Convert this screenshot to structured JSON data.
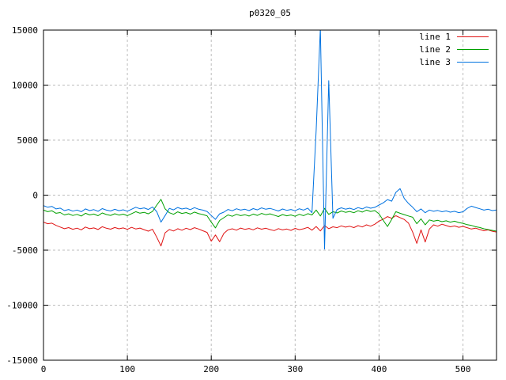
{
  "chart_data": {
    "type": "line",
    "title": "p0320_05",
    "xlabel": "",
    "ylabel": "",
    "xlim": [
      0,
      540
    ],
    "ylim": [
      -15000,
      15000
    ],
    "x_ticks": [
      0,
      100,
      200,
      300,
      400,
      500
    ],
    "y_ticks": [
      -15000,
      -10000,
      -5000,
      0,
      5000,
      10000,
      15000
    ],
    "grid": true,
    "legend_position": "top-right",
    "x_start": 0,
    "x_step": 5,
    "series": [
      {
        "name": "line 1",
        "color": "#e01414",
        "values": [
          -2450,
          -2600,
          -2550,
          -2750,
          -2900,
          -3050,
          -2950,
          -3100,
          -3000,
          -3150,
          -2900,
          -3050,
          -2980,
          -3120,
          -2870,
          -3010,
          -3090,
          -2940,
          -3060,
          -2980,
          -3110,
          -2930,
          -3070,
          -2990,
          -3140,
          -3270,
          -3100,
          -3830,
          -4620,
          -3420,
          -3120,
          -3260,
          -3050,
          -3190,
          -3010,
          -3130,
          -2960,
          -3080,
          -3240,
          -3390,
          -4180,
          -3620,
          -4230,
          -3480,
          -3150,
          -3060,
          -3180,
          -2990,
          -3110,
          -3030,
          -3150,
          -2970,
          -3090,
          -3010,
          -3130,
          -3220,
          -3040,
          -3160,
          -3080,
          -3200,
          -3020,
          -3140,
          -3060,
          -2930,
          -3180,
          -2850,
          -3250,
          -2760,
          -3050,
          -2880,
          -2960,
          -2790,
          -2910,
          -2830,
          -2950,
          -2770,
          -2890,
          -2700,
          -2820,
          -2640,
          -2360,
          -2180,
          -1950,
          -2100,
          -1870,
          -2040,
          -2210,
          -2530,
          -3350,
          -4380,
          -3150,
          -4260,
          -3080,
          -2700,
          -2820,
          -2640,
          -2760,
          -2880,
          -2800,
          -2920,
          -2840,
          -2960,
          -3080,
          -3000,
          -3120,
          -3240,
          -3160,
          -3280,
          -3350
        ]
      },
      {
        "name": "line 2",
        "color": "#00a000",
        "values": [
          -1350,
          -1500,
          -1420,
          -1650,
          -1580,
          -1800,
          -1700,
          -1850,
          -1750,
          -1900,
          -1650,
          -1800,
          -1720,
          -1870,
          -1620,
          -1760,
          -1840,
          -1690,
          -1810,
          -1730,
          -1860,
          -1680,
          -1500,
          -1640,
          -1560,
          -1700,
          -1480,
          -900,
          -380,
          -1250,
          -1600,
          -1740,
          -1520,
          -1660,
          -1580,
          -1720,
          -1540,
          -1680,
          -1760,
          -1880,
          -2450,
          -2980,
          -2300,
          -2050,
          -1800,
          -1920,
          -1740,
          -1860,
          -1780,
          -1900,
          -1720,
          -1840,
          -1660,
          -1780,
          -1700,
          -1820,
          -1940,
          -1760,
          -1880,
          -1800,
          -1920,
          -1740,
          -1860,
          -1680,
          -1800,
          -1350,
          -1900,
          -1200,
          -1750,
          -1500,
          -1620,
          -1440,
          -1560,
          -1480,
          -1600,
          -1420,
          -1540,
          -1360,
          -1480,
          -1400,
          -1700,
          -2300,
          -2850,
          -2200,
          -1500,
          -1650,
          -1770,
          -1890,
          -2010,
          -2600,
          -2150,
          -2700,
          -2250,
          -2370,
          -2290,
          -2410,
          -2330,
          -2450,
          -2370,
          -2490,
          -2560,
          -2680,
          -2750,
          -2870,
          -2940,
          -3060,
          -3130,
          -3200,
          -3270
        ]
      },
      {
        "name": "line 3",
        "color": "#0072e0",
        "values": [
          -950,
          -1100,
          -1020,
          -1250,
          -1180,
          -1400,
          -1300,
          -1450,
          -1350,
          -1500,
          -1250,
          -1400,
          -1320,
          -1470,
          -1220,
          -1360,
          -1440,
          -1290,
          -1410,
          -1330,
          -1460,
          -1280,
          -1100,
          -1240,
          -1160,
          -1300,
          -1080,
          -1500,
          -2450,
          -1850,
          -1200,
          -1340,
          -1120,
          -1260,
          -1180,
          -1320,
          -1140,
          -1280,
          -1360,
          -1480,
          -1850,
          -2200,
          -1700,
          -1550,
          -1300,
          -1420,
          -1240,
          -1360,
          -1280,
          -1400,
          -1220,
          -1340,
          -1160,
          -1280,
          -1200,
          -1320,
          -1440,
          -1260,
          -1380,
          -1300,
          -1420,
          -1240,
          -1360,
          -1180,
          -1600,
          5900,
          15200,
          -4900,
          10400,
          -2100,
          -1300,
          -1150,
          -1270,
          -1190,
          -1310,
          -1130,
          -1250,
          -1070,
          -1190,
          -1110,
          -900,
          -700,
          -400,
          -550,
          250,
          600,
          -300,
          -750,
          -1100,
          -1500,
          -1250,
          -1600,
          -1350,
          -1470,
          -1390,
          -1510,
          -1430,
          -1550,
          -1470,
          -1590,
          -1510,
          -1200,
          -1000,
          -1120,
          -1240,
          -1360,
          -1280,
          -1400,
          -1350
        ]
      }
    ]
  }
}
